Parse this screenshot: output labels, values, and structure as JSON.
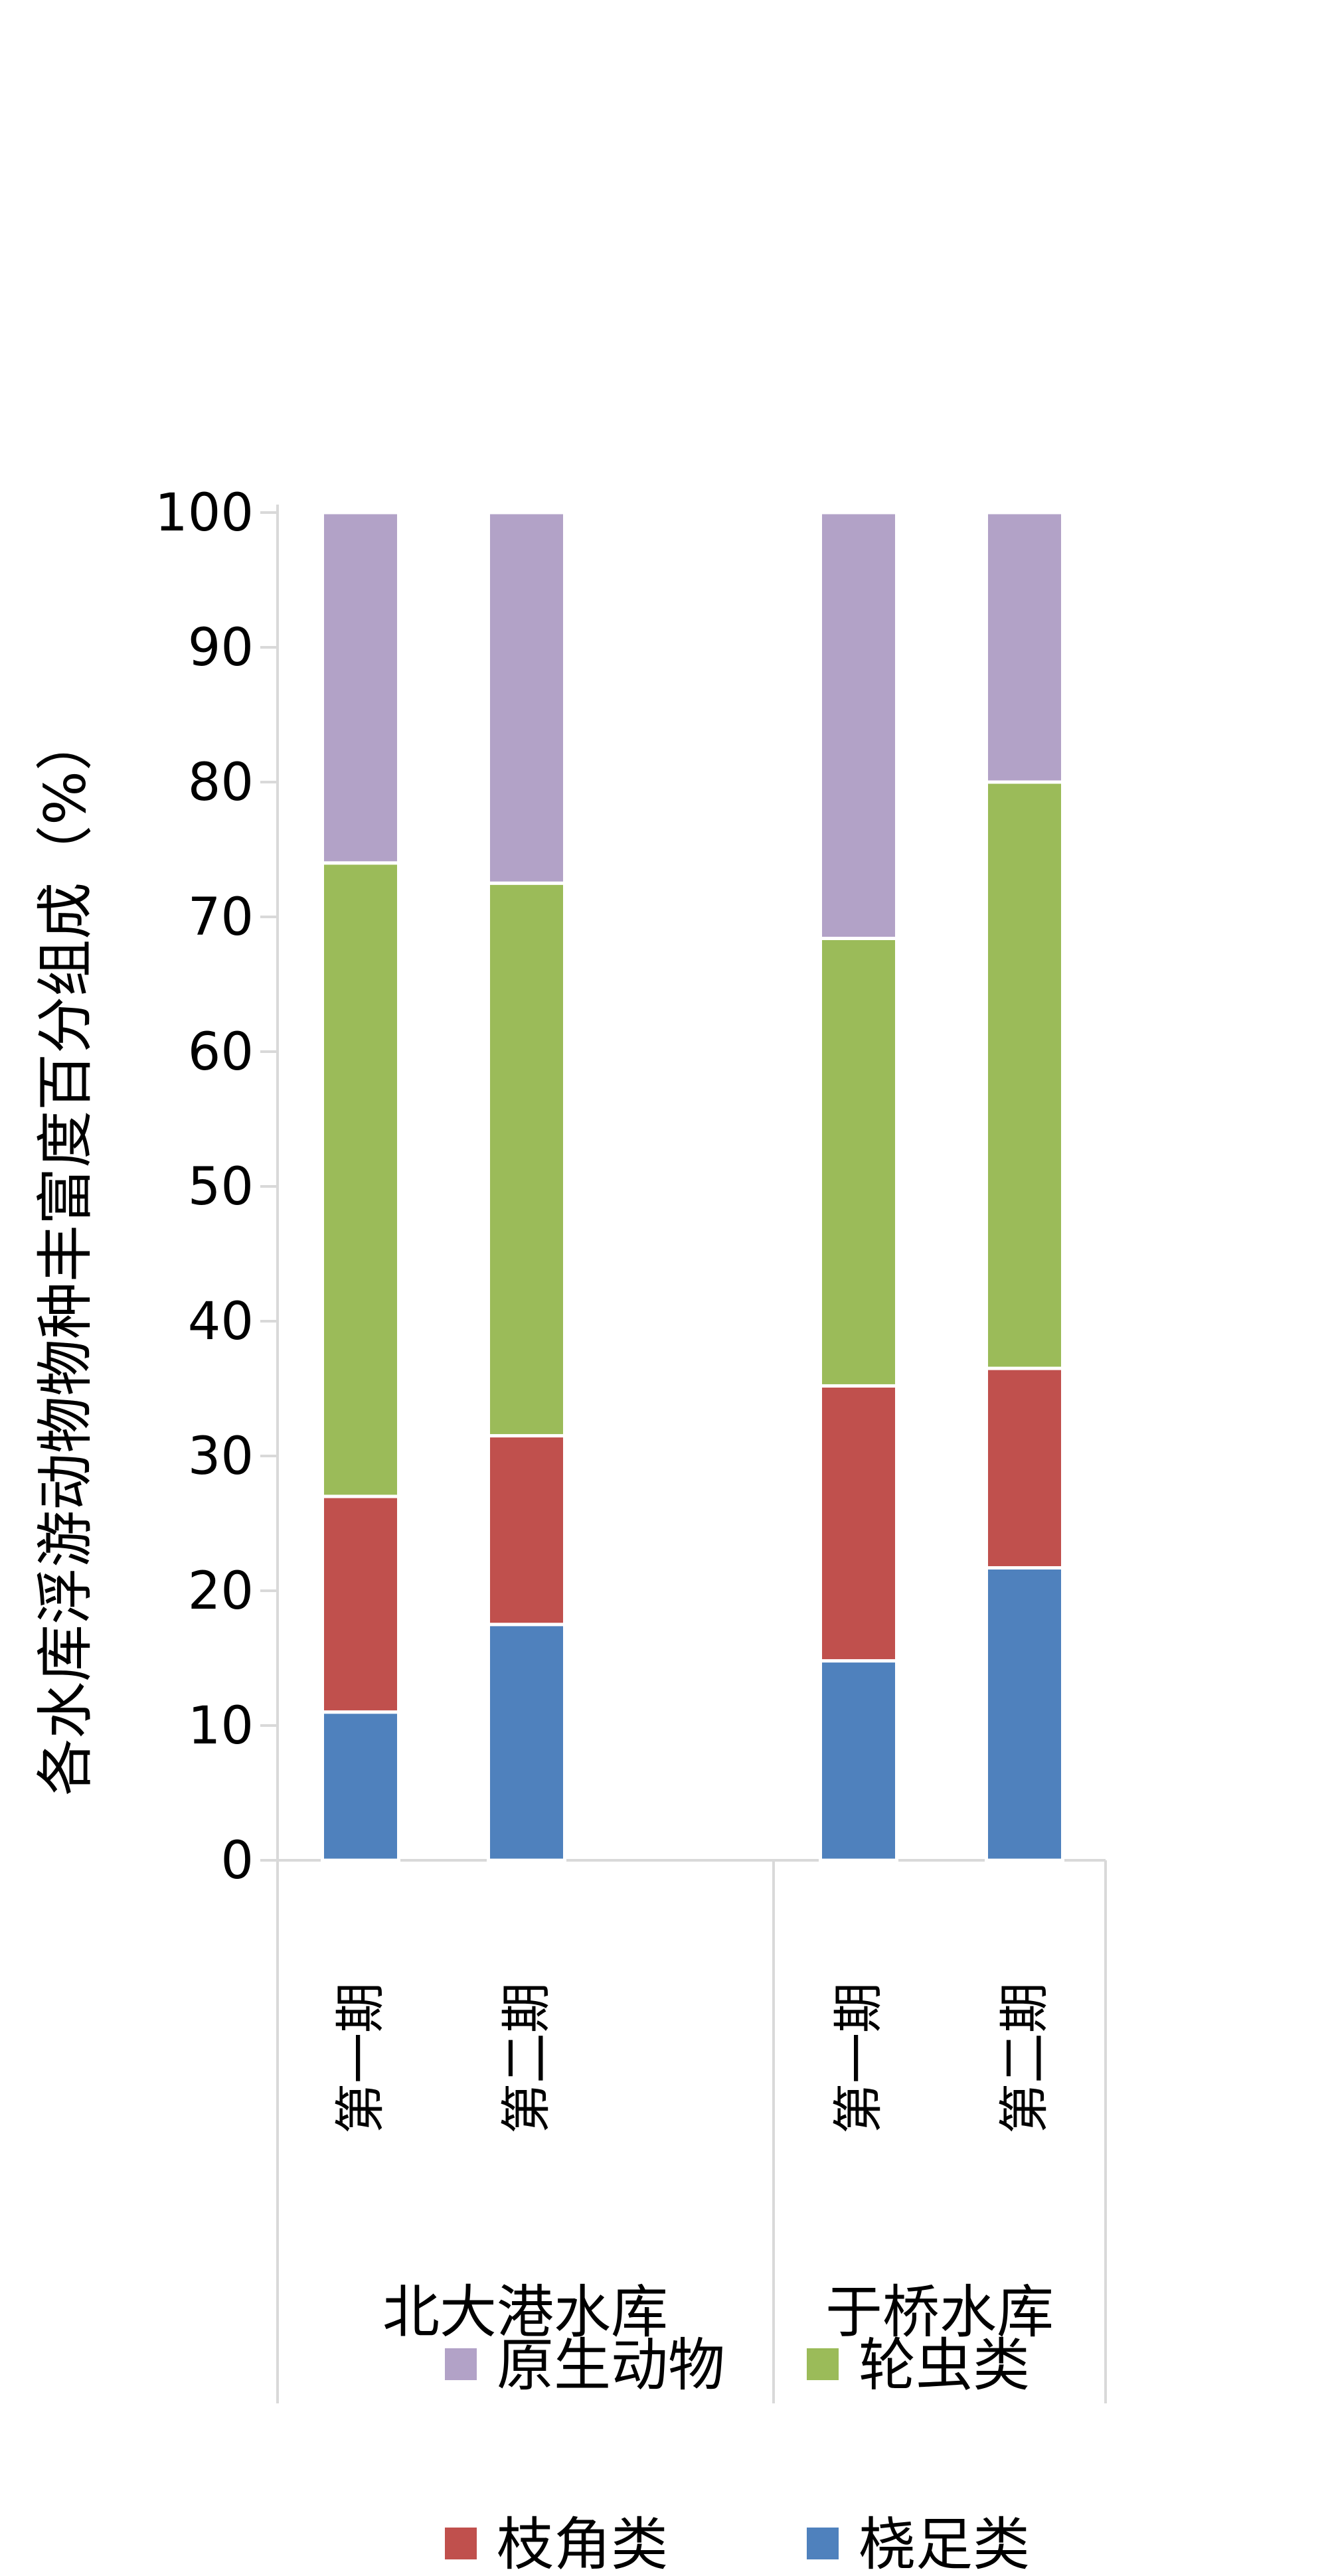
{
  "chart_data": {
    "type": "bar",
    "stacked": true,
    "title": "",
    "xlabel": "",
    "ylabel": "各水库浮游动物物种丰富度百分组成（%）",
    "ylim": [
      0,
      100
    ],
    "yticks": [
      0,
      10,
      20,
      30,
      40,
      50,
      60,
      70,
      80,
      90,
      100
    ],
    "grid": false,
    "legend_position": "bottom",
    "groups": [
      {
        "name": "北大港水库",
        "categories": [
          "第一期",
          "第二期"
        ]
      },
      {
        "name": "于桥水库",
        "categories": [
          "第一期",
          "第二期"
        ]
      }
    ],
    "categories": [
      "第一期",
      "第二期",
      "第一期",
      "第二期"
    ],
    "series": [
      {
        "name": "桡足类",
        "color": "#4F81BD",
        "values": [
          11.0,
          17.5,
          14.8,
          21.7
        ]
      },
      {
        "name": "枝角类",
        "color": "#C0504D",
        "values": [
          16.0,
          14.0,
          20.4,
          14.8
        ]
      },
      {
        "name": "轮虫类",
        "color": "#9BBB59",
        "values": [
          47.0,
          41.0,
          33.2,
          43.5
        ]
      },
      {
        "name": "原生动物",
        "color": "#B2A2C7",
        "values": [
          26.0,
          27.5,
          31.6,
          20.0
        ]
      }
    ],
    "legend_order": [
      "原生动物",
      "轮虫类",
      "枝角类",
      "桡足类"
    ]
  }
}
